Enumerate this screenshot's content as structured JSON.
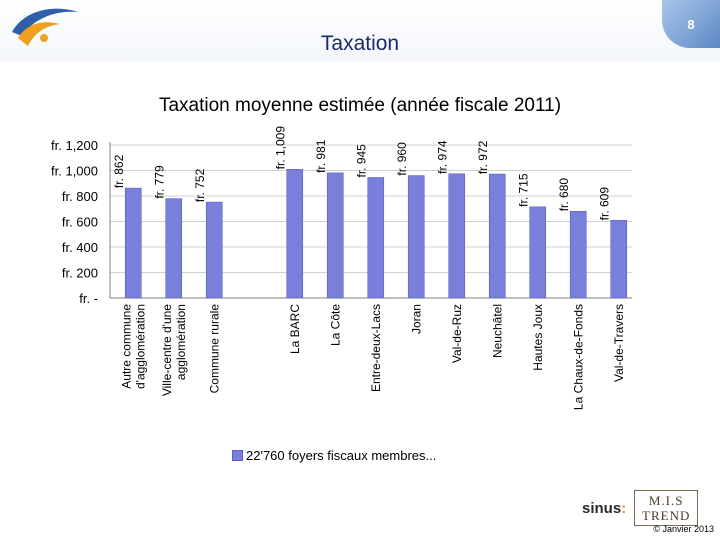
{
  "header": {
    "title": "Taxation",
    "slide_number": "8"
  },
  "legend": {
    "label": "22'760 foyers fiscaux membres..."
  },
  "footer": {
    "brand_sinus": "sinus",
    "brand_mis_line1": "M.I.S",
    "brand_mis_line2": "TREND",
    "copyright": "© Janvier 2013"
  },
  "colors": {
    "bar_fill": "#7b7fdc",
    "bar_edge": "#5a5fbf",
    "title_blue": "#1a2a6c",
    "logo_orange": "#f0a020",
    "logo_blue": "#2f5fa8"
  },
  "chart_data": {
    "type": "bar",
    "title": "Taxation moyenne estimée (année fiscale 2011)",
    "categories": [
      "Autre commune d'agglomération",
      "Ville-centre d'une agglomération",
      "Commune rurale",
      "La BARC",
      "La Côte",
      "Entre-deux-Lacs",
      "Joran",
      "Val-de-Ruz",
      "Neuchâtel",
      "Hautes Joux",
      "La Chaux-de-Fonds",
      "Val-de-Travers"
    ],
    "category_lines": [
      [
        "Autre commune",
        "d'agglomération"
      ],
      [
        "Ville-centre d'une",
        "agglomération"
      ],
      [
        "Commune rurale"
      ],
      [
        "La BARC"
      ],
      [
        "La Côte"
      ],
      [
        "Entre-deux-Lacs"
      ],
      [
        "Joran"
      ],
      [
        "Val-de-Ruz"
      ],
      [
        "Neuchâtel"
      ],
      [
        "Hautes Joux"
      ],
      [
        "La Chaux-de-Fonds"
      ],
      [
        "Val-de-Travers"
      ]
    ],
    "group_break_after": 2,
    "series": [
      {
        "name": "22'760 foyers fiscaux membres...",
        "values": [
          862,
          779,
          752,
          1009,
          981,
          945,
          960,
          974,
          972,
          715,
          680,
          609
        ],
        "labels": [
          "fr.  862",
          "fr.  779",
          "fr.  752",
          "fr.  1,009",
          "fr.  981",
          "fr.  945",
          "fr.  960",
          "fr.  974",
          "fr.  972",
          "fr.  715",
          "fr.  680",
          "fr.  609"
        ]
      }
    ],
    "y_ticks": [
      0,
      200,
      400,
      600,
      800,
      1000,
      1200
    ],
    "y_tick_labels": [
      "fr.  -",
      "fr.  200",
      "fr.  400",
      "fr.  600",
      "fr.  800",
      "fr.  1,000",
      "fr.  1,200"
    ],
    "ylim": [
      0,
      1200
    ],
    "grid": true,
    "legend_position": "bottom"
  }
}
